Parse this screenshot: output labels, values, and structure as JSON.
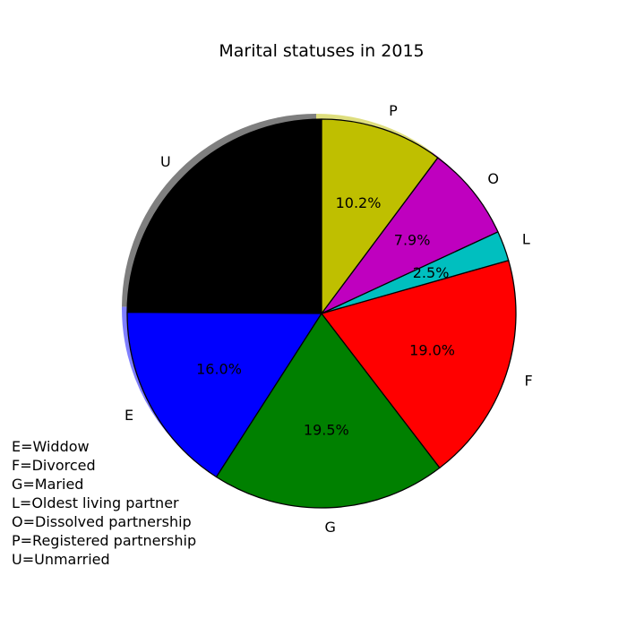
{
  "chart_data": {
    "type": "pie",
    "title": "Marital statuses in 2015",
    "start_angle_deg": 90,
    "direction": "counterclockwise",
    "shadow": true,
    "edge_color": "#000000",
    "slices": [
      {
        "label": "U",
        "value": 24.9,
        "pct_label": "",
        "color": "#000000"
      },
      {
        "label": "E",
        "value": 16.0,
        "pct_label": "16.0%",
        "color": "#0000ff"
      },
      {
        "label": "G",
        "value": 19.5,
        "pct_label": "19.5%",
        "color": "#008000"
      },
      {
        "label": "F",
        "value": 19.0,
        "pct_label": "19.0%",
        "color": "#ff0000"
      },
      {
        "label": "L",
        "value": 2.5,
        "pct_label": "2.5%",
        "color": "#00bfbf"
      },
      {
        "label": "O",
        "value": 7.9,
        "pct_label": "7.9%",
        "color": "#bf00bf"
      },
      {
        "label": "P",
        "value": 10.2,
        "pct_label": "10.2%",
        "color": "#bfbf00"
      }
    ],
    "legend_note": [
      "E=Widdow",
      "F=Divorced",
      "G=Maried",
      "L=Oldest living partner",
      "O=Dissolved partnership",
      "P=Registered partnership",
      "U=Unmarried"
    ]
  }
}
